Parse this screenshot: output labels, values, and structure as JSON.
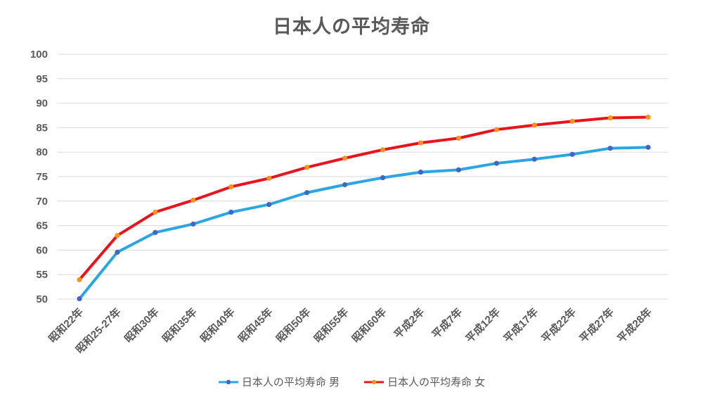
{
  "title": "日本人の平均寿命",
  "text_color": "#595959",
  "grid_color": "#D9D9D9",
  "background": "#FFFFFF",
  "chart_data": {
    "type": "line",
    "title": "日本人の平均寿命",
    "categories": [
      "昭和22年",
      "昭和25-27年",
      "昭和30年",
      "昭和35年",
      "昭和40年",
      "昭和45年",
      "昭和50年",
      "昭和55年",
      "昭和60年",
      "平成2年",
      "平成7年",
      "平成12年",
      "平成17年",
      "平成22年",
      "平成27年",
      "平成28年"
    ],
    "series": [
      {
        "name": "日本人の平均寿命 男",
        "line_color": "#2BA6E0",
        "marker_color": "#4464C8",
        "values": [
          50.06,
          59.57,
          63.6,
          65.32,
          67.74,
          69.31,
          71.73,
          73.35,
          74.78,
          75.92,
          76.38,
          77.72,
          78.56,
          79.55,
          80.79,
          80.98
        ]
      },
      {
        "name": "日本人の平均寿命 女",
        "line_color": "#E8131B",
        "marker_color": "#F8941D",
        "values": [
          53.96,
          62.97,
          67.75,
          70.19,
          72.92,
          74.66,
          76.89,
          78.76,
          80.48,
          81.9,
          82.85,
          84.6,
          85.52,
          86.3,
          86.99,
          87.14
        ]
      }
    ],
    "yticks": [
      50,
      55,
      60,
      65,
      70,
      75,
      80,
      85,
      90,
      95,
      100
    ],
    "ylim": [
      50,
      100
    ],
    "grid": true,
    "legend_position": "bottom",
    "xlabel": "",
    "ylabel": ""
  }
}
